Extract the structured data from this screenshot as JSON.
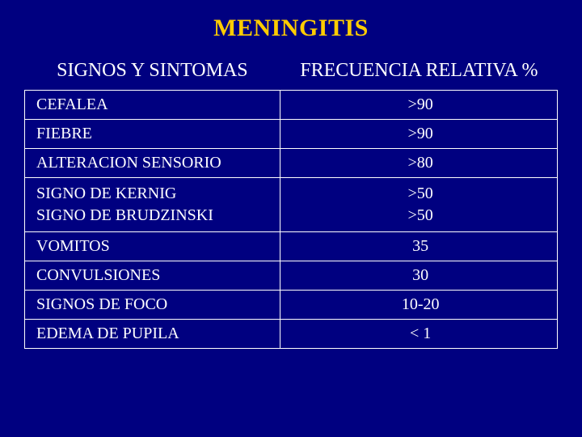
{
  "title": "MENINGITIS",
  "headers": {
    "left": "SIGNOS Y SINTOMAS",
    "right": "FRECUENCIA RELATIVA %"
  },
  "table": {
    "type": "table",
    "background_color": "#000080",
    "border_color": "#ffffff",
    "text_color": "#ffffff",
    "title_color": "#ffcc00",
    "title_fontsize": 30,
    "header_fontsize": 24,
    "cell_fontsize": 20,
    "col_widths_pct": [
      48,
      52
    ],
    "col_align": [
      "left",
      "center"
    ],
    "rows": [
      {
        "label": "CEFALEA",
        "value": ">90"
      },
      {
        "label": "FIEBRE",
        "value": ">90"
      },
      {
        "label": "ALTERACION SENSORIO",
        "value": ">80"
      },
      {
        "label": "SIGNO DE KERNIG\nSIGNO DE  BRUDZINSKI",
        "value": ">50\n>50"
      },
      {
        "label": "VOMITOS",
        "value": "35"
      },
      {
        "label": "CONVULSIONES",
        "value": "30"
      },
      {
        "label": "SIGNOS DE  FOCO",
        "value": "10-20"
      },
      {
        "label": "EDEMA DE PUPILA",
        "value": "< 1"
      }
    ]
  }
}
